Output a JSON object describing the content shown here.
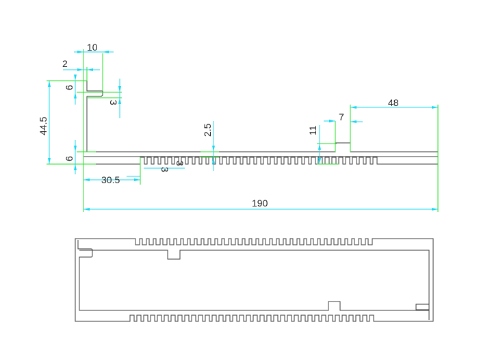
{
  "drawing": {
    "dimensions": {
      "top_tab_width": "10",
      "wall_thickness": "2",
      "top_flange_height": "6",
      "overall_height": "44.5",
      "base_thickness": "6",
      "tab_gap": "3",
      "fin_start_offset": "30.5",
      "fin_width": "3",
      "fin_gap": "3",
      "fin_depth": "2.5",
      "rib_height": "11",
      "rib_width": "7",
      "right_offset": "48",
      "overall_width": "190"
    },
    "colors": {
      "outline": "#3a3a3a",
      "dimension_line": "#18d8f0",
      "extension_line": "#22e022"
    }
  }
}
